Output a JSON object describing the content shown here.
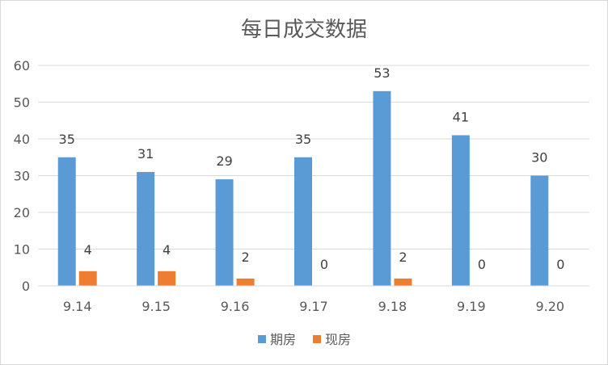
{
  "chart_data": {
    "type": "bar",
    "title": "每日成交数据",
    "categories": [
      "9.14",
      "9.15",
      "9.16",
      "9.17",
      "9.18",
      "9.19",
      "9.20"
    ],
    "series": [
      {
        "name": "期房",
        "color": "#5b9bd5",
        "values": [
          35,
          31,
          29,
          35,
          53,
          41,
          30
        ]
      },
      {
        "name": "现房",
        "color": "#ed7d31",
        "values": [
          4,
          4,
          2,
          0,
          2,
          0,
          0
        ]
      }
    ],
    "ylim": [
      0,
      60
    ],
    "yticks": [
      0,
      10,
      20,
      30,
      40,
      50,
      60
    ],
    "grid": true,
    "legend_position": "bottom",
    "gridline_color": "#d9d9d9"
  }
}
